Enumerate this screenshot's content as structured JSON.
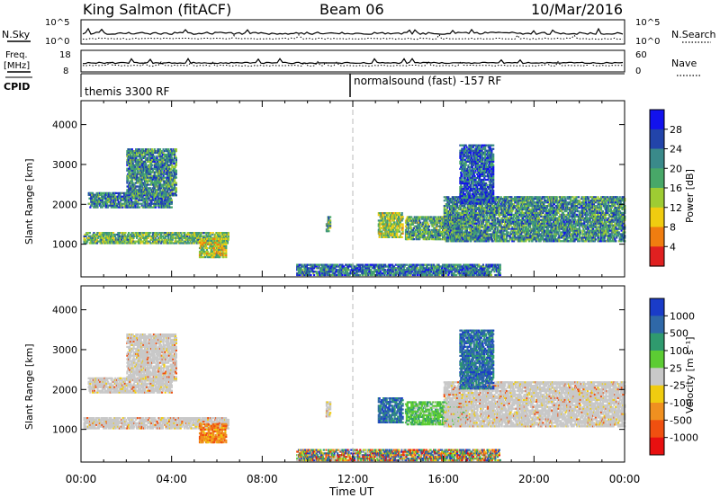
{
  "header": {
    "station": "King Salmon (fitACF)",
    "beam": "Beam 06",
    "date": "10/Mar/2016"
  },
  "noise_panel": {
    "left_label": "N.Sky",
    "left_ticks": [
      "10^5",
      "10^0"
    ],
    "right_label": "N.Search",
    "right_ticks": [
      "10^5",
      "10^0"
    ]
  },
  "freq_panel": {
    "left_label_line1": "Freq.",
    "left_label_line2": "[MHz]",
    "left_ticks": [
      "18",
      "8"
    ],
    "right_label": "Nave",
    "right_ticks": [
      "60",
      "0"
    ]
  },
  "cpid_panel": {
    "label": "CPID",
    "mode1": "themis 3300 RF",
    "mode2": "normalsound (fast) -157 RF"
  },
  "chart_data": [
    {
      "type": "heatmap",
      "name": "Power",
      "ylabel": "Slant Range [km]",
      "ylim": [
        180,
        4600
      ],
      "yticks": [
        1000,
        2000,
        3000,
        4000
      ],
      "xlim_hours": [
        0,
        24
      ],
      "colorbar": {
        "label": "Power [dB]",
        "ticks": [
          "4",
          "8",
          "12",
          "16",
          "20",
          "24",
          "28"
        ],
        "colors": [
          "#1212ee",
          "#2244aa",
          "#3a8a8a",
          "#48a868",
          "#9ecc33",
          "#f0cc10",
          "#f07d10",
          "#e02020"
        ]
      },
      "features": [
        {
          "start": 0.1,
          "end": 6.5,
          "range_lo": 1000,
          "range_hi": 1300,
          "level": 0.45
        },
        {
          "start": 0.3,
          "end": 4.0,
          "range_lo": 1900,
          "range_hi": 2300,
          "level": 0.28
        },
        {
          "start": 2.0,
          "end": 4.2,
          "range_lo": 2200,
          "range_hi": 3400,
          "level": 0.32
        },
        {
          "start": 5.2,
          "end": 6.4,
          "range_lo": 650,
          "range_hi": 1150,
          "level": 0.6
        },
        {
          "start": 10.8,
          "end": 11.0,
          "range_lo": 1300,
          "range_hi": 1700,
          "level": 0.4
        },
        {
          "start": 13.1,
          "end": 14.2,
          "range_lo": 1150,
          "range_hi": 1800,
          "level": 0.55
        },
        {
          "start": 14.3,
          "end": 17.0,
          "range_lo": 1100,
          "range_hi": 1700,
          "level": 0.4
        },
        {
          "start": 16.0,
          "end": 24.0,
          "range_lo": 1050,
          "range_hi": 2200,
          "level": 0.32
        },
        {
          "start": 16.7,
          "end": 18.2,
          "range_lo": 2000,
          "range_hi": 3500,
          "level": 0.18
        },
        {
          "start": 9.5,
          "end": 18.5,
          "range_lo": 200,
          "range_hi": 500,
          "level": 0.25
        }
      ]
    },
    {
      "type": "heatmap",
      "name": "Velocity",
      "ylabel": "Slant Range [km]",
      "xlabel": "Time UT",
      "ylim": [
        180,
        4600
      ],
      "yticks": [
        1000,
        2000,
        3000,
        4000
      ],
      "xlim_hours": [
        0,
        24
      ],
      "xticks": [
        "00:00",
        "04:00",
        "08:00",
        "12:00",
        "16:00",
        "20:00",
        "00:00"
      ],
      "colorbar": {
        "label": "Velocity [m s⁻¹]",
        "ticks": [
          "1000",
          "500",
          "100",
          "25",
          "-25",
          "-100",
          "-500",
          "-1000"
        ],
        "colors": [
          "#1a3cc8",
          "#2f68a8",
          "#2f9a6e",
          "#5ccc33",
          "#c8c8c8",
          "#f0cc10",
          "#f09020",
          "#f05010",
          "#e81010"
        ]
      },
      "features": [
        {
          "start": 0.1,
          "end": 6.5,
          "range_lo": 1000,
          "range_hi": 1300,
          "class": "ground"
        },
        {
          "start": 0.3,
          "end": 4.0,
          "range_lo": 1900,
          "range_hi": 2300,
          "class": "ground"
        },
        {
          "start": 2.0,
          "end": 4.2,
          "range_lo": 2200,
          "range_hi": 3400,
          "class": "ground"
        },
        {
          "start": 5.2,
          "end": 6.4,
          "range_lo": 650,
          "range_hi": 1150,
          "class": "away"
        },
        {
          "start": 10.8,
          "end": 11.0,
          "range_lo": 1300,
          "range_hi": 1700,
          "class": "ground"
        },
        {
          "start": 13.1,
          "end": 14.2,
          "range_lo": 1150,
          "range_hi": 1800,
          "class": "toward"
        },
        {
          "start": 14.3,
          "end": 17.0,
          "range_lo": 1100,
          "range_hi": 1700,
          "class": "toward_slow"
        },
        {
          "start": 16.0,
          "end": 24.0,
          "range_lo": 1050,
          "range_hi": 2200,
          "class": "ground"
        },
        {
          "start": 16.7,
          "end": 18.2,
          "range_lo": 2000,
          "range_hi": 3500,
          "class": "toward"
        },
        {
          "start": 9.5,
          "end": 18.5,
          "range_lo": 200,
          "range_hi": 500,
          "class": "mixed"
        }
      ]
    }
  ]
}
